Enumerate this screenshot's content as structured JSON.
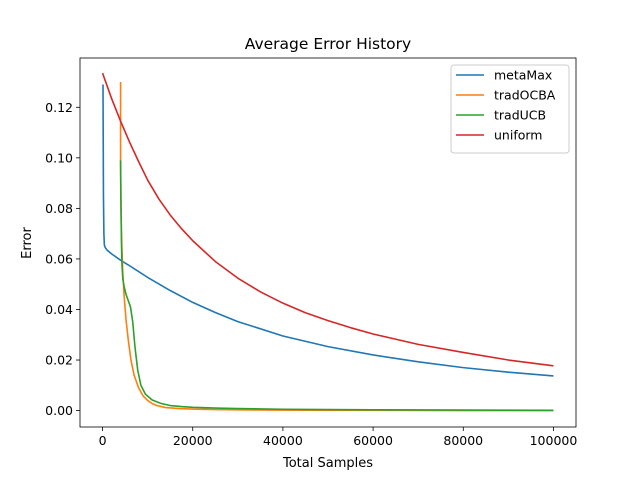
{
  "chart_data": {
    "type": "line",
    "title": "Average Error History",
    "xlabel": "Total Samples",
    "ylabel": "Error",
    "xlim": [
      -5000,
      105000
    ],
    "ylim": [
      -0.0065,
      0.1395
    ],
    "xticks": [
      0,
      20000,
      40000,
      60000,
      80000,
      100000
    ],
    "xtick_labels": [
      "0",
      "20000",
      "40000",
      "60000",
      "80000",
      "100000"
    ],
    "yticks": [
      0.0,
      0.02,
      0.04,
      0.06,
      0.08,
      0.1,
      0.12
    ],
    "ytick_labels": [
      "0.00",
      "0.02",
      "0.04",
      "0.06",
      "0.08",
      "0.10",
      "0.12"
    ],
    "grid": false,
    "legend_position": "top-right",
    "series": [
      {
        "name": "metaMax",
        "color": "#1f77b4",
        "x": [
          100,
          200,
          300,
          400,
          600,
          1000,
          2000,
          4000,
          6000,
          8000,
          10000,
          15000,
          20000,
          25000,
          30000,
          40000,
          50000,
          60000,
          70000,
          80000,
          90000,
          100000
        ],
        "y": [
          0.129,
          0.085,
          0.07,
          0.0655,
          0.0645,
          0.0635,
          0.062,
          0.0595,
          0.0573,
          0.055,
          0.0527,
          0.0475,
          0.0428,
          0.0388,
          0.0352,
          0.0295,
          0.0253,
          0.022,
          0.0193,
          0.017,
          0.0152,
          0.0137
        ]
      },
      {
        "name": "tradOCBA",
        "color": "#ff7f0e",
        "x": [
          4000,
          4000,
          4050,
          4150,
          4300,
          4500,
          4800,
          5200,
          5700,
          6300,
          7000,
          8000,
          9000,
          10000,
          11000,
          12000,
          14000,
          17000,
          20000,
          25000,
          30000,
          40000,
          50000,
          60000,
          80000,
          100000
        ],
        "y": [
          0.13,
          0.098,
          0.085,
          0.074,
          0.064,
          0.054,
          0.045,
          0.036,
          0.028,
          0.02,
          0.014,
          0.009,
          0.0058,
          0.004,
          0.0028,
          0.002,
          0.0012,
          0.0008,
          0.0006,
          0.0004,
          0.0003,
          0.0002,
          0.0001,
          0.0001,
          0.0,
          0.0
        ]
      },
      {
        "name": "tradUCB",
        "color": "#2ca02c",
        "x": [
          4000,
          4100,
          4200,
          4300,
          4500,
          4800,
          5200,
          5700,
          6200,
          6700,
          7200,
          7800,
          8500,
          9500,
          11000,
          13000,
          15000,
          17500,
          20000,
          25000,
          30000,
          40000,
          50000,
          60000,
          80000,
          100000
        ],
        "y": [
          0.099,
          0.08,
          0.066,
          0.058,
          0.052,
          0.049,
          0.046,
          0.0435,
          0.041,
          0.035,
          0.025,
          0.016,
          0.01,
          0.0065,
          0.0042,
          0.0028,
          0.002,
          0.0016,
          0.0013,
          0.001,
          0.0008,
          0.0005,
          0.0004,
          0.0003,
          0.0002,
          0.0001
        ]
      },
      {
        "name": "uniform",
        "color": "#d62728",
        "x": [
          0,
          2000,
          4000,
          6000,
          8000,
          10000,
          12500,
          15000,
          17500,
          20000,
          25000,
          30000,
          35000,
          40000,
          45000,
          50000,
          55000,
          60000,
          70000,
          80000,
          90000,
          100000
        ],
        "y": [
          0.1335,
          0.1235,
          0.1145,
          0.1062,
          0.0985,
          0.0912,
          0.0837,
          0.0774,
          0.072,
          0.0672,
          0.059,
          0.0524,
          0.047,
          0.0425,
          0.0387,
          0.0356,
          0.0328,
          0.0303,
          0.0262,
          0.023,
          0.02,
          0.0177
        ]
      }
    ]
  }
}
